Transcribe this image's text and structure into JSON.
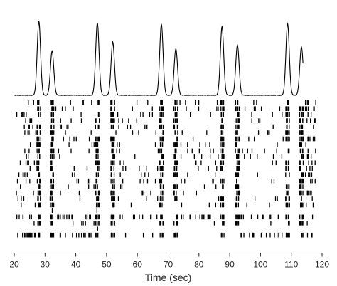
{
  "chart_data": {
    "type": "line",
    "title": "",
    "xlabel": "Time (sec)",
    "ylabel": "",
    "xlim": [
      20,
      120
    ],
    "xticks": [
      20,
      30,
      40,
      50,
      60,
      70,
      80,
      90,
      100,
      110,
      120
    ],
    "grid": false,
    "legend": "none",
    "colors": {
      "line": "#000000",
      "raster": "#000000",
      "axis": "#262626"
    },
    "population_trace": {
      "baseline": 0.02,
      "peaks": [
        {
          "t": 28.0,
          "height": 1.0
        },
        {
          "t": 32.3,
          "height": 0.6
        },
        {
          "t": 47.0,
          "height": 0.98
        },
        {
          "t": 52.0,
          "height": 0.72
        },
        {
          "t": 67.8,
          "height": 0.96
        },
        {
          "t": 72.5,
          "height": 0.63
        },
        {
          "t": 87.5,
          "height": 0.93
        },
        {
          "t": 92.5,
          "height": 0.68
        },
        {
          "t": 108.8,
          "height": 0.97
        },
        {
          "t": 113.3,
          "height": 0.65
        }
      ]
    },
    "raster": {
      "rows": 23,
      "burst_times": [
        28.0,
        32.3,
        47.0,
        52.0,
        67.8,
        72.5,
        87.5,
        92.5,
        108.8,
        113.3
      ],
      "active_rows": [
        0,
        1,
        2,
        3,
        4,
        5,
        6,
        7,
        8,
        9,
        10,
        11,
        12,
        13,
        14,
        15,
        16,
        17,
        19,
        20,
        22
      ]
    }
  }
}
